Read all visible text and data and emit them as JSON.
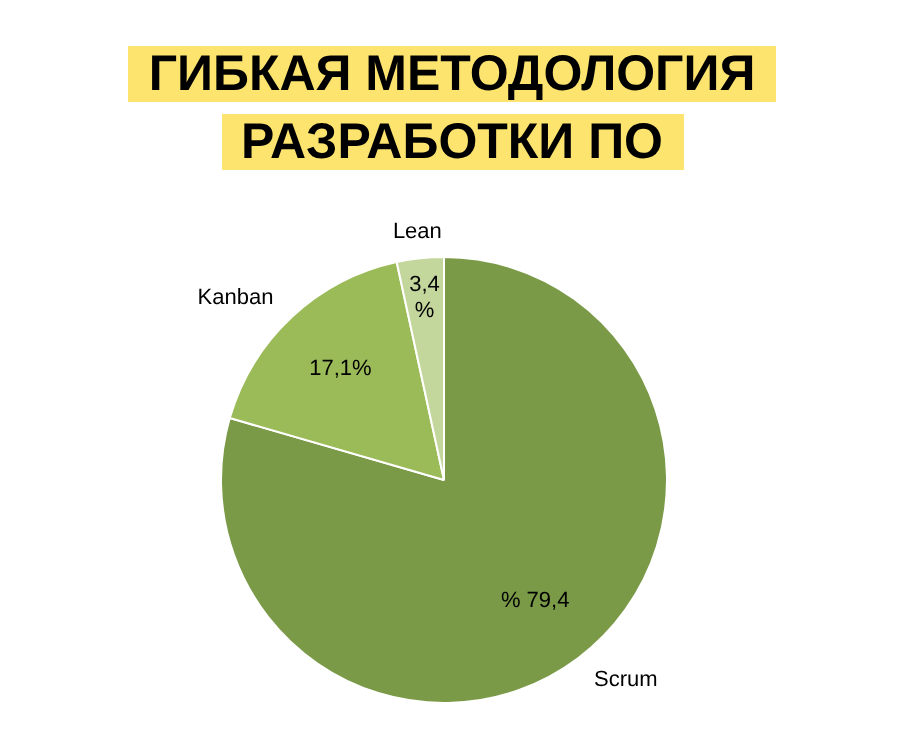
{
  "chart_data": {
    "type": "pie",
    "title": "ГИБКАЯ МЕТОДОЛОГИЯ\nРАЗРАБОТКИ ПО",
    "categories": [
      "Scrum",
      "Kanban",
      "Lean"
    ],
    "values": [
      79.4,
      17.1,
      3.4
    ],
    "colors": [
      "#7a9a48",
      "#9bbb59",
      "#c3d69b"
    ],
    "value_labels": [
      "% 79,4",
      "17,1%",
      "3,4 %"
    ],
    "legend": false
  }
}
